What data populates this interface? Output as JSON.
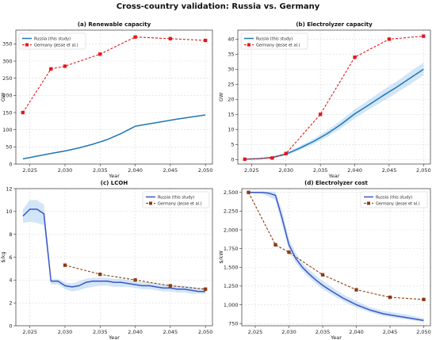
{
  "figure": {
    "title": "Cross-country validation: Russia vs. Germany"
  },
  "chart_data": [
    {
      "type": "line",
      "title": "(a) Renewable capacity",
      "xlabel": "Year",
      "ylabel": "GW",
      "xlim": [
        2023,
        2051
      ],
      "ylim": [
        0,
        390
      ],
      "xticks": [
        2025,
        2030,
        2035,
        2040,
        2045,
        2050
      ],
      "yticks": [
        0,
        50,
        100,
        150,
        200,
        250,
        300,
        350
      ],
      "grid": true,
      "legend": "top-left",
      "series": [
        {
          "name": "Russia (this study)",
          "style": "solid",
          "color": "#1f77b4",
          "x": [
            2024,
            2026,
            2028,
            2030,
            2032,
            2034,
            2036,
            2038,
            2040,
            2042,
            2044,
            2046,
            2048,
            2050
          ],
          "y": [
            15,
            23,
            31,
            38,
            47,
            58,
            71,
            89,
            110,
            117,
            124,
            131,
            137,
            143
          ]
        },
        {
          "name": "Germany (Jesse et al.)",
          "style": "dashed",
          "color": "#e8141a",
          "marker": "square",
          "x": [
            2024,
            2028,
            2030,
            2035,
            2040,
            2045,
            2050
          ],
          "y": [
            150,
            277,
            285,
            320,
            370,
            365,
            360
          ]
        }
      ]
    },
    {
      "type": "line",
      "title": "(b) Electrolyzer capacity",
      "xlabel": "Year",
      "ylabel": "GW",
      "xlim": [
        2023,
        2051
      ],
      "ylim": [
        -1.5,
        43
      ],
      "xticks": [
        2025,
        2030,
        2035,
        2040,
        2045,
        2050
      ],
      "yticks": [
        0,
        5,
        10,
        15,
        20,
        25,
        30,
        35,
        40
      ],
      "grid": true,
      "legend": "top-left",
      "series": [
        {
          "name": "Russia (this study)",
          "style": "solid",
          "color": "#1f77b4",
          "band": true,
          "x": [
            2024,
            2026,
            2028,
            2030,
            2032,
            2034,
            2036,
            2038,
            2040,
            2042,
            2044,
            2046,
            2048,
            2050
          ],
          "y": [
            0.1,
            0.3,
            0.7,
            1.8,
            3.8,
            6.0,
            8.6,
            11.7,
            15.2,
            18.1,
            21.1,
            23.9,
            27.0,
            30.0
          ],
          "band_low": [
            0.0,
            0.1,
            0.4,
            1.3,
            3.1,
            5.1,
            7.5,
            10.4,
            13.7,
            16.5,
            19.3,
            22.0,
            24.9,
            28.0
          ],
          "band_high": [
            0.2,
            0.5,
            1.0,
            2.3,
            4.5,
            6.9,
            9.7,
            13.0,
            16.7,
            19.7,
            22.9,
            25.8,
            29.1,
            32.2
          ]
        },
        {
          "name": "Germany (Jesse et al.)",
          "style": "dashed",
          "color": "#e8141a",
          "marker": "square",
          "x": [
            2024,
            2028,
            2030,
            2035,
            2040,
            2045,
            2050
          ],
          "y": [
            0.1,
            0.5,
            2,
            15,
            34,
            40,
            41
          ]
        }
      ]
    },
    {
      "type": "line",
      "title": "(c) LCOH",
      "xlabel": "Year",
      "ylabel": "$/kg",
      "xlim": [
        2023,
        2051
      ],
      "ylim": [
        0,
        12
      ],
      "xticks": [
        2025,
        2030,
        2035,
        2040,
        2045,
        2050
      ],
      "yticks": [
        0,
        2,
        4,
        6,
        8,
        10,
        12
      ],
      "grid": true,
      "legend": "top-right",
      "series": [
        {
          "name": "Russia (this study)",
          "style": "solid",
          "color": "#3b55c7",
          "band": true,
          "x": [
            2024,
            2025,
            2026,
            2027,
            2028,
            2029,
            2030,
            2031,
            2032,
            2033,
            2034,
            2035,
            2036,
            2037,
            2038,
            2039,
            2040,
            2041,
            2042,
            2043,
            2044,
            2045,
            2046,
            2047,
            2048,
            2049,
            2050
          ],
          "y": [
            9.6,
            10.2,
            10.2,
            9.8,
            3.9,
            3.9,
            3.5,
            3.4,
            3.5,
            3.8,
            3.9,
            3.9,
            3.9,
            3.8,
            3.8,
            3.7,
            3.6,
            3.5,
            3.5,
            3.4,
            3.3,
            3.3,
            3.2,
            3.2,
            3.1,
            3.0,
            3.0
          ],
          "band_low": [
            9.0,
            9.1,
            9.0,
            8.8,
            3.6,
            3.6,
            3.2,
            3.0,
            3.1,
            3.3,
            3.4,
            3.5,
            3.5,
            3.4,
            3.4,
            3.4,
            3.3,
            3.2,
            3.2,
            3.1,
            3.0,
            3.0,
            2.9,
            2.9,
            2.8,
            2.8,
            2.8
          ],
          "band_high": [
            10.2,
            11.0,
            11.0,
            10.6,
            4.1,
            4.1,
            3.8,
            3.7,
            3.9,
            4.1,
            4.2,
            4.2,
            4.2,
            4.1,
            4.1,
            4.0,
            3.9,
            3.8,
            3.8,
            3.7,
            3.6,
            3.6,
            3.5,
            3.5,
            3.4,
            3.3,
            3.3
          ]
        },
        {
          "name": "Germany (Jesse et al.)",
          "style": "dashed",
          "color": "#8b3a10",
          "marker": "square",
          "x": [
            2030,
            2035,
            2040,
            2045,
            2050
          ],
          "y": [
            5.3,
            4.5,
            4.0,
            3.5,
            3.2
          ]
        }
      ]
    },
    {
      "type": "line",
      "title": "(d) Electrolyzer cost",
      "xlabel": "Year",
      "ylabel": "$/kW",
      "xlim": [
        2023,
        2051
      ],
      "ylim": [
        720,
        2550
      ],
      "xticks": [
        2025,
        2030,
        2035,
        2040,
        2045,
        2050
      ],
      "yticks": [
        750,
        1000,
        1250,
        1500,
        1750,
        2000,
        2250,
        2500
      ],
      "grid": true,
      "legend": "top-right",
      "series": [
        {
          "name": "Russia (this study)",
          "style": "solid",
          "color": "#3b55c7",
          "band": true,
          "x": [
            2024,
            2026,
            2027,
            2028,
            2029,
            2030,
            2031,
            2032,
            2033,
            2034,
            2035,
            2036,
            2038,
            2040,
            2042,
            2044,
            2046,
            2048,
            2050
          ],
          "y": [
            2500,
            2500,
            2490,
            2460,
            2150,
            1800,
            1620,
            1500,
            1410,
            1330,
            1260,
            1200,
            1090,
            1000,
            930,
            880,
            850,
            820,
            790
          ],
          "band_low": [
            2490,
            2480,
            2440,
            2400,
            2060,
            1730,
            1560,
            1450,
            1360,
            1280,
            1210,
            1150,
            1050,
            960,
            900,
            850,
            820,
            795,
            770
          ],
          "band_high": [
            2510,
            2510,
            2510,
            2510,
            2250,
            1880,
            1690,
            1560,
            1470,
            1390,
            1320,
            1260,
            1140,
            1050,
            970,
            920,
            890,
            860,
            820
          ]
        },
        {
          "name": "Germany (Jesse et al.)",
          "style": "dashed",
          "color": "#8b3a10",
          "marker": "square",
          "x": [
            2024,
            2028,
            2030,
            2035,
            2040,
            2045,
            2050
          ],
          "y": [
            2500,
            1800,
            1700,
            1400,
            1200,
            1100,
            1070
          ]
        }
      ]
    }
  ]
}
